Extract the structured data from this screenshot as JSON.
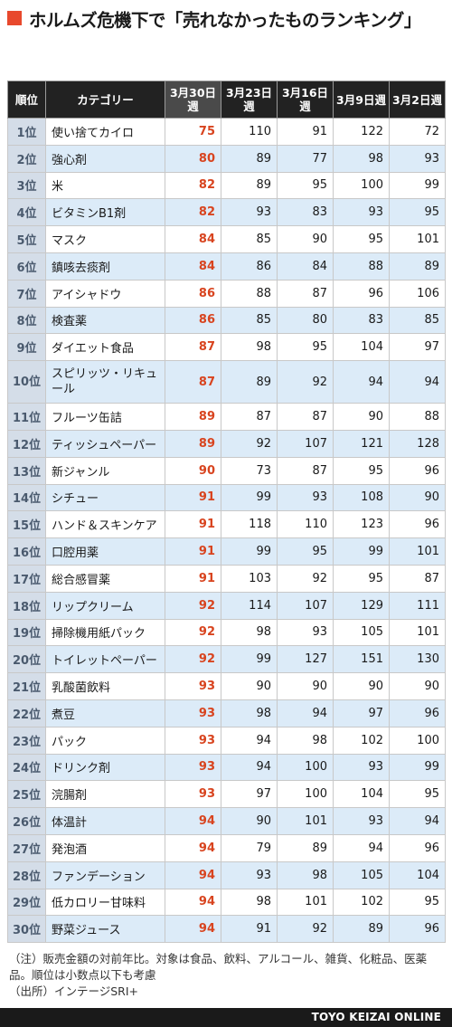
{
  "title": "ホルムズ危機下で「売れなかったものランキング」",
  "headers": {
    "rank": "順位",
    "category": "カテゴリー",
    "weeks": [
      "3月30日週",
      "3月23日週",
      "3月16日週",
      "3月9日週",
      "3月2日週"
    ]
  },
  "rows": [
    {
      "rank": "1位",
      "category": "使い捨てカイロ",
      "values": [
        75,
        110,
        91,
        122,
        72
      ]
    },
    {
      "rank": "2位",
      "category": "強心剤",
      "values": [
        80,
        89,
        77,
        98,
        93
      ]
    },
    {
      "rank": "3位",
      "category": "米",
      "values": [
        82,
        89,
        95,
        100,
        99
      ]
    },
    {
      "rank": "4位",
      "category": "ビタミンB1剤",
      "values": [
        82,
        93,
        83,
        93,
        95
      ]
    },
    {
      "rank": "5位",
      "category": "マスク",
      "values": [
        84,
        85,
        90,
        95,
        101
      ]
    },
    {
      "rank": "6位",
      "category": "鎮咳去痰剤",
      "values": [
        84,
        86,
        84,
        88,
        89
      ]
    },
    {
      "rank": "7位",
      "category": "アイシャドウ",
      "values": [
        86,
        88,
        87,
        96,
        106
      ]
    },
    {
      "rank": "8位",
      "category": "検査薬",
      "values": [
        86,
        85,
        80,
        83,
        85
      ]
    },
    {
      "rank": "9位",
      "category": "ダイエット食品",
      "values": [
        87,
        98,
        95,
        104,
        97
      ]
    },
    {
      "rank": "10位",
      "category": "スピリッツ・リキュール",
      "values": [
        87,
        89,
        92,
        94,
        94
      ]
    },
    {
      "rank": "11位",
      "category": "フルーツ缶詰",
      "values": [
        89,
        87,
        87,
        90,
        88
      ]
    },
    {
      "rank": "12位",
      "category": "ティッシュペーパー",
      "values": [
        89,
        92,
        107,
        121,
        128
      ]
    },
    {
      "rank": "13位",
      "category": "新ジャンル",
      "values": [
        90,
        73,
        87,
        95,
        96
      ]
    },
    {
      "rank": "14位",
      "category": "シチュー",
      "values": [
        91,
        99,
        93,
        108,
        90
      ]
    },
    {
      "rank": "15位",
      "category": "ハンド＆スキンケア",
      "values": [
        91,
        118,
        110,
        123,
        96
      ]
    },
    {
      "rank": "16位",
      "category": "口腔用薬",
      "values": [
        91,
        99,
        95,
        99,
        101
      ]
    },
    {
      "rank": "17位",
      "category": "総合感冒薬",
      "values": [
        91,
        103,
        92,
        95,
        87
      ]
    },
    {
      "rank": "18位",
      "category": "リップクリーム",
      "values": [
        92,
        114,
        107,
        129,
        111
      ]
    },
    {
      "rank": "19位",
      "category": "掃除機用紙パック",
      "values": [
        92,
        98,
        93,
        105,
        101
      ]
    },
    {
      "rank": "20位",
      "category": "トイレットペーパー",
      "values": [
        92,
        99,
        127,
        151,
        130
      ]
    },
    {
      "rank": "21位",
      "category": "乳酸菌飲料",
      "values": [
        93,
        90,
        90,
        90,
        90
      ]
    },
    {
      "rank": "22位",
      "category": "煮豆",
      "values": [
        93,
        98,
        94,
        97,
        96
      ]
    },
    {
      "rank": "23位",
      "category": "パック",
      "values": [
        93,
        94,
        98,
        102,
        100
      ]
    },
    {
      "rank": "24位",
      "category": "ドリンク剤",
      "values": [
        93,
        94,
        100,
        93,
        99
      ]
    },
    {
      "rank": "25位",
      "category": "浣腸剤",
      "values": [
        93,
        97,
        100,
        104,
        95
      ]
    },
    {
      "rank": "26位",
      "category": "体温計",
      "values": [
        94,
        90,
        101,
        93,
        94
      ]
    },
    {
      "rank": "27位",
      "category": "発泡酒",
      "values": [
        94,
        79,
        89,
        94,
        96
      ]
    },
    {
      "rank": "28位",
      "category": "ファンデーション",
      "values": [
        94,
        93,
        98,
        105,
        104
      ]
    },
    {
      "rank": "29位",
      "category": "低カロリー甘味料",
      "values": [
        94,
        98,
        101,
        102,
        95
      ]
    },
    {
      "rank": "30位",
      "category": "野菜ジュース",
      "values": [
        94,
        91,
        92,
        89,
        96
      ]
    }
  ],
  "notes": {
    "note1": "（注）販売金額の対前年比。対象は食品、飲料、アルコール、雑貨、化粧品、医薬品。順位は小数点以下も考慮",
    "source": "（出所）インテージSRI+"
  },
  "footer": "TOYO KEIZAI ONLINE",
  "colors": {
    "accent": "#e8492d",
    "header_bg": "#222222",
    "current_value": "#d8441f",
    "alt_row": "#dcebf8",
    "rank_col": "#d4dde8"
  }
}
